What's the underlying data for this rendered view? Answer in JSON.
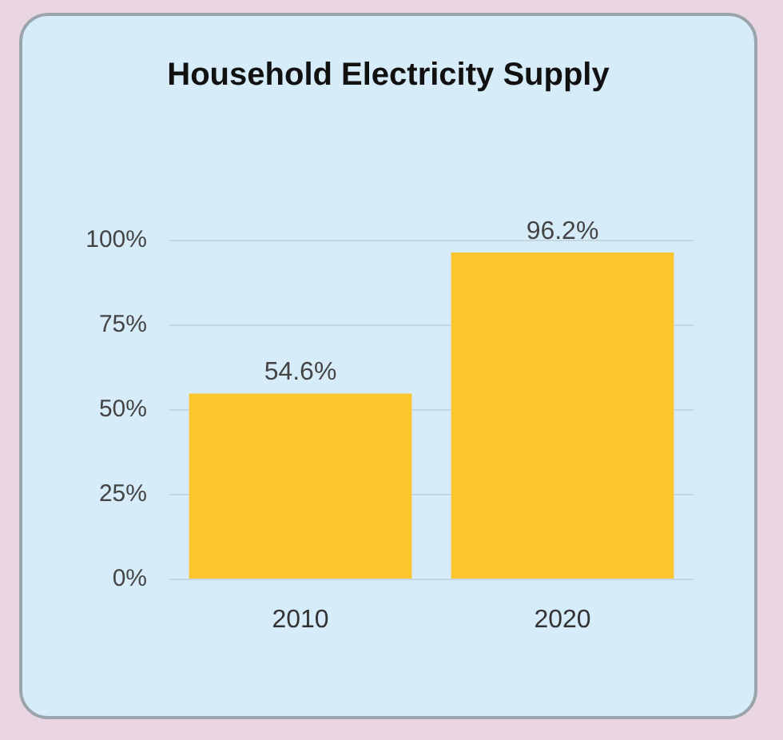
{
  "chart_data": {
    "type": "bar",
    "title": "Household Electricity Supply",
    "categories": [
      "2010",
      "2020"
    ],
    "values": [
      54.6,
      96.2
    ],
    "color": "#fcc62e",
    "value_labels": [
      "54.6%",
      "96.2%"
    ],
    "ylim": [
      0,
      100
    ],
    "yticks": [
      {
        "value": 0,
        "label": "0%"
      },
      {
        "value": 25,
        "label": "25%"
      },
      {
        "value": 50,
        "label": "50%"
      },
      {
        "value": 75,
        "label": "75%"
      },
      {
        "value": 100,
        "label": "100%"
      }
    ],
    "grid": "y"
  }
}
